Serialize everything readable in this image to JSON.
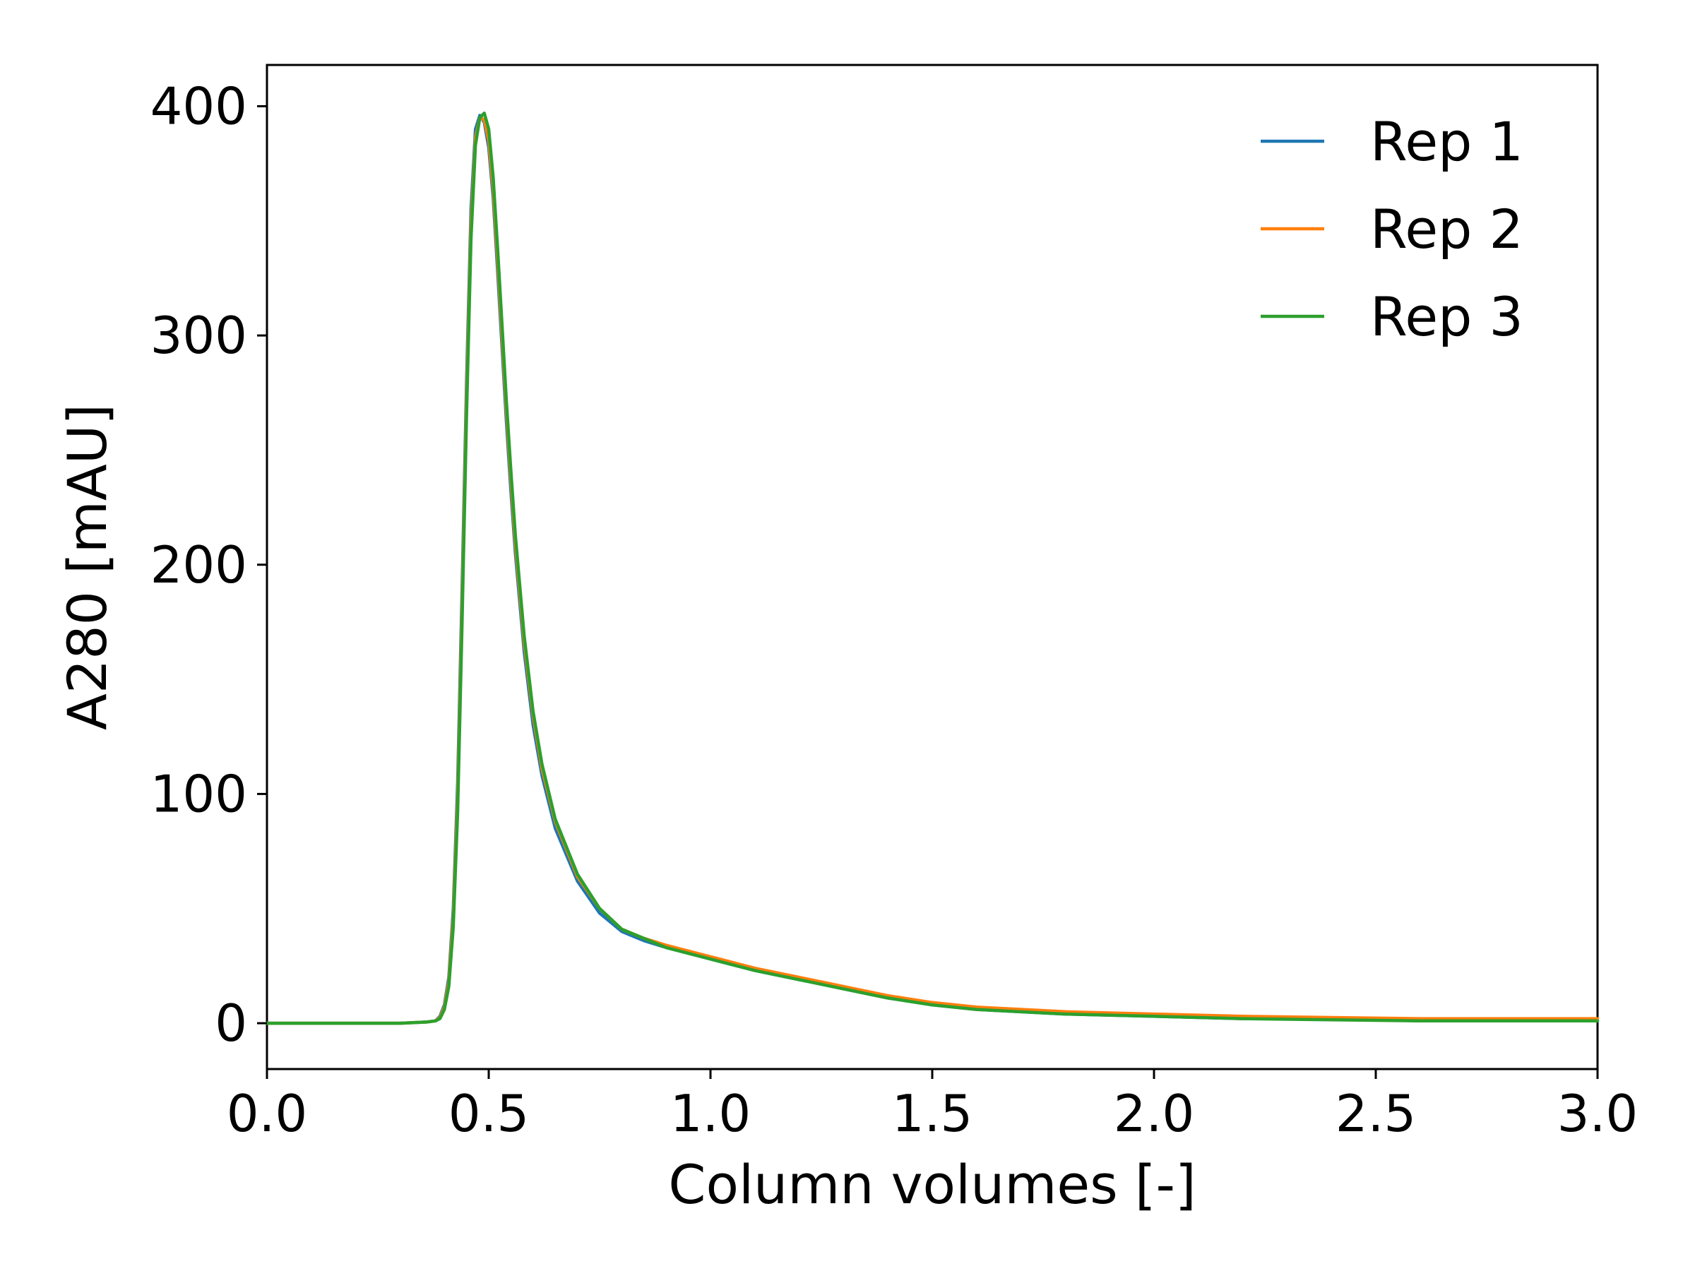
{
  "chart_data": {
    "type": "line",
    "title": "",
    "xlabel": "Column volumes [-]",
    "ylabel": "A280 [mAU]",
    "xlim": [
      0.0,
      3.0
    ],
    "ylim": [
      -20,
      418
    ],
    "xticks": [
      "0.0",
      "0.5",
      "1.0",
      "1.5",
      "2.0",
      "2.5",
      "3.0"
    ],
    "yticks": [
      "0",
      "100",
      "200",
      "300",
      "400"
    ],
    "legend_position": "top-right",
    "grid": false,
    "series": [
      {
        "name": "Rep 1",
        "color": "#1f77b4",
        "x": [
          0.0,
          0.1,
          0.2,
          0.3,
          0.36,
          0.38,
          0.39,
          0.4,
          0.41,
          0.42,
          0.43,
          0.44,
          0.45,
          0.46,
          0.47,
          0.48,
          0.49,
          0.5,
          0.51,
          0.52,
          0.53,
          0.54,
          0.55,
          0.56,
          0.58,
          0.6,
          0.62,
          0.65,
          0.7,
          0.75,
          0.8,
          0.85,
          0.9,
          1.0,
          1.1,
          1.2,
          1.3,
          1.4,
          1.5,
          1.6,
          1.8,
          2.0,
          2.2,
          2.4,
          2.6,
          2.8,
          3.0
        ],
        "y": [
          0,
          0,
          0,
          0,
          0.5,
          1,
          3,
          8,
          20,
          50,
          105,
          190,
          280,
          355,
          390,
          396,
          393,
          382,
          360,
          328,
          295,
          262,
          232,
          205,
          162,
          130,
          108,
          85,
          62,
          48,
          40,
          36,
          33,
          28,
          23,
          19,
          15,
          11,
          8,
          6,
          4,
          3,
          2,
          2,
          1,
          1,
          1
        ]
      },
      {
        "name": "Rep 2",
        "color": "#ff7f0e",
        "x": [
          0.0,
          0.1,
          0.2,
          0.3,
          0.36,
          0.38,
          0.39,
          0.4,
          0.41,
          0.42,
          0.43,
          0.44,
          0.45,
          0.46,
          0.47,
          0.48,
          0.49,
          0.5,
          0.51,
          0.52,
          0.53,
          0.54,
          0.55,
          0.56,
          0.58,
          0.6,
          0.62,
          0.65,
          0.7,
          0.75,
          0.8,
          0.85,
          0.9,
          1.0,
          1.1,
          1.2,
          1.3,
          1.4,
          1.5,
          1.6,
          1.8,
          2.0,
          2.2,
          2.4,
          2.6,
          2.8,
          3.0
        ],
        "y": [
          0,
          0,
          0,
          0,
          0.5,
          1,
          2.5,
          7,
          18,
          46,
          98,
          182,
          272,
          348,
          386,
          395,
          394,
          385,
          364,
          333,
          300,
          267,
          237,
          209,
          166,
          134,
          111,
          88,
          64,
          50,
          41,
          37,
          34,
          29,
          24,
          20,
          16,
          12,
          9,
          7,
          5,
          4,
          3,
          2.5,
          2,
          2,
          2
        ]
      },
      {
        "name": "Rep 3",
        "color": "#2ca02c",
        "x": [
          0.0,
          0.1,
          0.2,
          0.3,
          0.36,
          0.38,
          0.39,
          0.4,
          0.41,
          0.42,
          0.43,
          0.44,
          0.45,
          0.46,
          0.47,
          0.48,
          0.49,
          0.5,
          0.51,
          0.52,
          0.53,
          0.54,
          0.55,
          0.56,
          0.58,
          0.6,
          0.62,
          0.65,
          0.7,
          0.75,
          0.8,
          0.85,
          0.9,
          1.0,
          1.1,
          1.2,
          1.3,
          1.4,
          1.5,
          1.6,
          1.8,
          2.0,
          2.2,
          2.4,
          2.6,
          2.8,
          3.0
        ],
        "y": [
          0,
          0,
          0,
          0,
          0.5,
          1,
          2,
          6,
          16,
          42,
          92,
          175,
          265,
          342,
          383,
          395,
          397,
          390,
          369,
          338,
          305,
          271,
          241,
          213,
          169,
          136,
          113,
          89,
          65,
          50,
          41,
          37,
          33,
          28,
          23,
          19,
          15,
          11,
          8,
          6,
          4,
          3,
          2,
          1.5,
          1,
          1,
          1
        ]
      }
    ]
  }
}
